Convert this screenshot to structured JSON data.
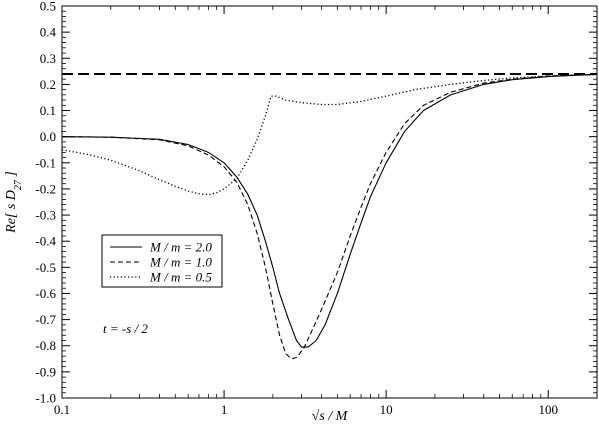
{
  "chart_data": {
    "type": "line",
    "xlabel": "√s / M",
    "ylabel": "Re[ s D27 ]",
    "ylabel_parts": {
      "main": "Re[ s D",
      "sub": "27",
      "end": " ]"
    },
    "xscale": "log",
    "xlim": [
      0.1,
      200
    ],
    "ylim": [
      -1.0,
      0.5
    ],
    "x_ticks": [
      {
        "value": 0.1,
        "label": "0.1"
      },
      {
        "value": 1,
        "label": "1"
      },
      {
        "value": 10,
        "label": "10"
      },
      {
        "value": 100,
        "label": "100"
      }
    ],
    "y_ticks": [
      {
        "value": 0.5,
        "label": "0.5"
      },
      {
        "value": 0.4,
        "label": "0.4"
      },
      {
        "value": 0.3,
        "label": "0.3"
      },
      {
        "value": 0.2,
        "label": "0.2"
      },
      {
        "value": 0.1,
        "label": "0.1"
      },
      {
        "value": 0.0,
        "label": "0.0"
      },
      {
        "value": -0.1,
        "label": "-0.1"
      },
      {
        "value": -0.2,
        "label": "-0.2"
      },
      {
        "value": -0.3,
        "label": "-0.3"
      },
      {
        "value": -0.4,
        "label": "-0.4"
      },
      {
        "value": -0.5,
        "label": "-0.5"
      },
      {
        "value": -0.6,
        "label": "-0.6"
      },
      {
        "value": -0.7,
        "label": "-0.7"
      },
      {
        "value": -0.8,
        "label": "-0.8"
      },
      {
        "value": -0.9,
        "label": "-0.9"
      },
      {
        "value": -1.0,
        "label": "-1.0"
      }
    ],
    "grid": false,
    "legend_position": "left-middle",
    "annotation": "t = -s / 2",
    "reference_line": {
      "y": 0.24,
      "style": "long-dash"
    },
    "series": [
      {
        "name": "M / m = 2.0",
        "style": "solid",
        "x": [
          0.1,
          0.2,
          0.4,
          0.6,
          0.8,
          1.0,
          1.2,
          1.4,
          1.6,
          1.8,
          2.0,
          2.2,
          2.5,
          2.8,
          3.0,
          3.3,
          3.7,
          4.2,
          5.0,
          6.0,
          7.0,
          8.0,
          10,
          13,
          17,
          25,
          40,
          60,
          100,
          150,
          200
        ],
        "y": [
          0.0,
          -0.002,
          -0.01,
          -0.03,
          -0.06,
          -0.1,
          -0.155,
          -0.22,
          -0.3,
          -0.4,
          -0.5,
          -0.6,
          -0.7,
          -0.78,
          -0.805,
          -0.805,
          -0.78,
          -0.72,
          -0.6,
          -0.45,
          -0.33,
          -0.23,
          -0.1,
          0.02,
          0.1,
          0.16,
          0.2,
          0.218,
          0.23,
          0.235,
          0.238
        ]
      },
      {
        "name": "M / m = 1.0",
        "style": "dashed",
        "x": [
          0.1,
          0.2,
          0.4,
          0.6,
          0.8,
          1.0,
          1.2,
          1.4,
          1.6,
          1.8,
          2.0,
          2.2,
          2.4,
          2.6,
          2.8,
          3.1,
          3.5,
          4.0,
          5.0,
          6.0,
          7.0,
          8.0,
          10,
          13,
          17,
          25,
          40,
          60,
          100,
          150,
          200
        ],
        "y": [
          0.0,
          -0.002,
          -0.012,
          -0.035,
          -0.07,
          -0.115,
          -0.175,
          -0.26,
          -0.37,
          -0.5,
          -0.64,
          -0.76,
          -0.83,
          -0.85,
          -0.845,
          -0.81,
          -0.74,
          -0.66,
          -0.52,
          -0.38,
          -0.27,
          -0.18,
          -0.06,
          0.05,
          0.12,
          0.17,
          0.205,
          0.22,
          0.232,
          0.236,
          0.238
        ]
      },
      {
        "name": "M / m = 0.5",
        "style": "dotted",
        "x": [
          0.1,
          0.15,
          0.2,
          0.3,
          0.4,
          0.5,
          0.6,
          0.7,
          0.8,
          0.9,
          1.0,
          1.2,
          1.4,
          1.6,
          1.8,
          1.95,
          2.1,
          2.4,
          3.0,
          4.0,
          5.0,
          7.0,
          10,
          15,
          25,
          40,
          60,
          100,
          150,
          200
        ],
        "y": [
          -0.05,
          -0.07,
          -0.09,
          -0.13,
          -0.165,
          -0.19,
          -0.208,
          -0.218,
          -0.222,
          -0.215,
          -0.2,
          -0.16,
          -0.09,
          -0.01,
          0.08,
          0.155,
          0.155,
          0.14,
          0.13,
          0.123,
          0.123,
          0.135,
          0.155,
          0.18,
          0.2,
          0.215,
          0.225,
          0.232,
          0.236,
          0.238
        ]
      }
    ]
  }
}
